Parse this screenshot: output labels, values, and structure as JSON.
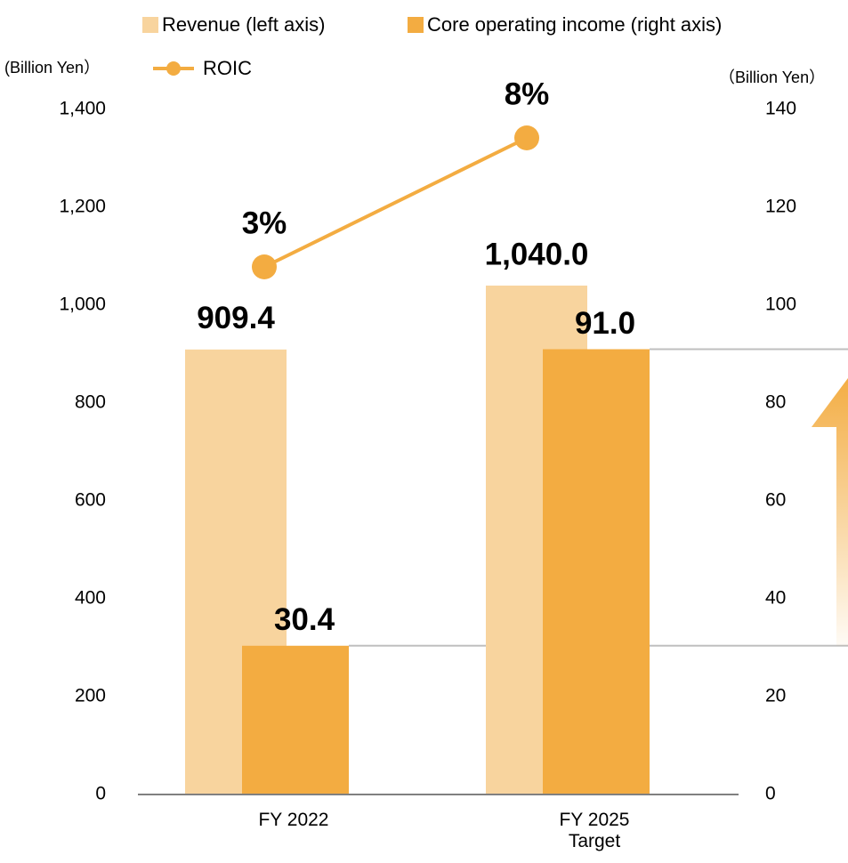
{
  "chart_data": {
    "type": "bar",
    "categories": [
      "FY 2022",
      "FY 2025 Target"
    ],
    "series": [
      {
        "name": "Revenue (left axis)",
        "color": "#f8d49e",
        "values": [
          909.4,
          1040
        ],
        "value_labels": [
          "909.4",
          "1,040.0"
        ],
        "axis": "y"
      },
      {
        "name": "Core operating income (right axis)",
        "color": "#f3ac41",
        "values": [
          30.4,
          91
        ],
        "value_labels": [
          "30.4",
          "91.0"
        ],
        "axis": "y2"
      },
      {
        "name": "ROIC",
        "color": "#f3ac41",
        "type": "line",
        "values": [
          3,
          8
        ],
        "value_labels": [
          "3%",
          "8%"
        ]
      }
    ],
    "y_unit": "(Billion Yen）",
    "y2_unit": "（Billion Yen）",
    "ylim": [
      0,
      1400
    ],
    "yticks": [
      0,
      200,
      400,
      600,
      {
        "value": 800,
        "label": "800"
      },
      {
        "value": 1000,
        "label": "1,000"
      },
      {
        "value": 1200,
        "label": "1,200"
      },
      {
        "value": 1400,
        "label": "1,400"
      }
    ],
    "y2lim": [
      0,
      140
    ],
    "y2ticks": [
      0,
      20,
      40,
      60,
      80,
      100,
      120,
      140
    ]
  }
}
